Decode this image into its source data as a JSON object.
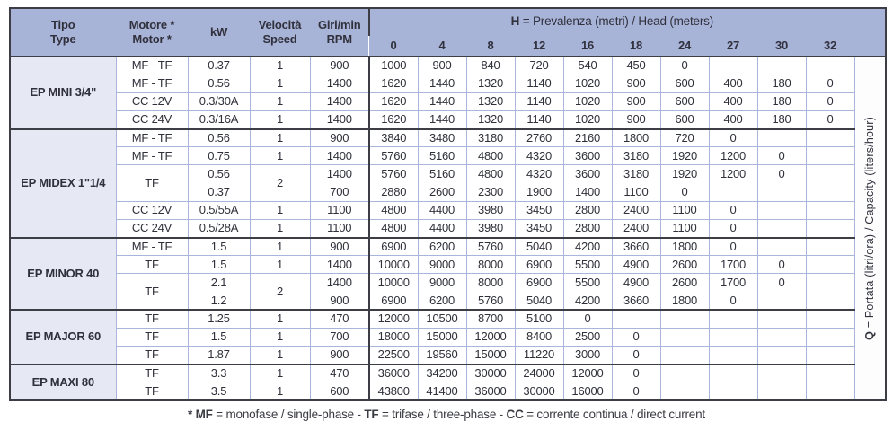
{
  "table": {
    "columns": [
      {
        "id": "tipo",
        "lines": [
          "Tipo",
          "Type"
        ]
      },
      {
        "id": "motore",
        "lines": [
          "Motore *",
          "Motor *"
        ]
      },
      {
        "id": "kw",
        "lines": [
          "kW"
        ]
      },
      {
        "id": "velocita",
        "lines": [
          "Velocità",
          "Speed"
        ]
      },
      {
        "id": "rpm",
        "lines": [
          "Giri/min",
          "RPM"
        ]
      }
    ],
    "head_group": {
      "prefix": "H",
      "rest": " = Prevalenza (metri) / Head (meters)"
    },
    "head_values": [
      "0",
      "4",
      "8",
      "12",
      "16",
      "18",
      "24",
      "27",
      "30",
      "32"
    ],
    "q_axis": {
      "prefix": "Q",
      "rest": " = Portata (litri/ora) / Capacity (liters/hour)"
    },
    "sections": [
      {
        "name": "EP MINI 3/4\"",
        "rows": [
          {
            "motor": "MF - TF",
            "kw": "0.37",
            "speed": "1",
            "rpm": "900",
            "flow": [
              "1000",
              "900",
              "840",
              "720",
              "540",
              "450",
              "0",
              "",
              "",
              ""
            ]
          },
          {
            "motor": "MF - TF",
            "kw": "0.56",
            "speed": "1",
            "rpm": "1400",
            "flow": [
              "1620",
              "1440",
              "1320",
              "1140",
              "1020",
              "900",
              "600",
              "400",
              "180",
              "0"
            ]
          },
          {
            "motor": "CC 12V",
            "kw": "0.3/30A",
            "speed": "1",
            "rpm": "1400",
            "flow": [
              "1620",
              "1440",
              "1320",
              "1140",
              "1020",
              "900",
              "600",
              "400",
              "180",
              "0"
            ]
          },
          {
            "motor": "CC 24V",
            "kw": "0.3/16A",
            "speed": "1",
            "rpm": "1400",
            "flow": [
              "1620",
              "1440",
              "1320",
              "1140",
              "1020",
              "900",
              "600",
              "400",
              "180",
              "0"
            ]
          }
        ]
      },
      {
        "name": "EP MIDEX 1\"1/4",
        "rows": [
          {
            "motor": "MF - TF",
            "kw": "0.56",
            "speed": "1",
            "rpm": "900",
            "flow": [
              "3840",
              "3480",
              "3180",
              "2760",
              "2160",
              "1800",
              "720",
              "0",
              "",
              ""
            ]
          },
          {
            "motor": "MF - TF",
            "kw": "0.75",
            "speed": "1",
            "rpm": "1400",
            "flow": [
              "5760",
              "5160",
              "4800",
              "4320",
              "3600",
              "3180",
              "1920",
              "1200",
              "0",
              ""
            ]
          },
          {
            "motor": "TF",
            "group": 2,
            "kw": "0.56",
            "speed": "2",
            "rpm": "1400",
            "flow": [
              "5760",
              "5160",
              "4800",
              "4320",
              "3600",
              "3180",
              "1920",
              "1200",
              "0",
              ""
            ]
          },
          {
            "cont": true,
            "kw": "0.37",
            "rpm": "700",
            "flow": [
              "2880",
              "2600",
              "2300",
              "1900",
              "1400",
              "1100",
              "0",
              "",
              "",
              ""
            ]
          },
          {
            "motor": "CC 12V",
            "kw": "0.5/55A",
            "speed": "1",
            "rpm": "1100",
            "flow": [
              "4800",
              "4400",
              "3980",
              "3450",
              "2800",
              "2400",
              "1100",
              "0",
              "",
              ""
            ]
          },
          {
            "motor": "CC 24V",
            "kw": "0.5/28A",
            "speed": "1",
            "rpm": "1100",
            "flow": [
              "4800",
              "4400",
              "3980",
              "3450",
              "2800",
              "2400",
              "1100",
              "0",
              "",
              ""
            ]
          }
        ]
      },
      {
        "name": "EP MINOR 40",
        "rows": [
          {
            "motor": "MF - TF",
            "kw": "1.5",
            "speed": "1",
            "rpm": "900",
            "flow": [
              "6900",
              "6200",
              "5760",
              "5040",
              "4200",
              "3660",
              "1800",
              "0",
              "",
              ""
            ]
          },
          {
            "motor": "TF",
            "kw": "1.5",
            "speed": "1",
            "rpm": "1400",
            "flow": [
              "10000",
              "9000",
              "8000",
              "6900",
              "5500",
              "4900",
              "2600",
              "1700",
              "0",
              ""
            ]
          },
          {
            "motor": "TF",
            "group": 2,
            "kw": "2.1",
            "speed": "2",
            "rpm": "1400",
            "flow": [
              "10000",
              "9000",
              "8000",
              "6900",
              "5500",
              "4900",
              "2600",
              "1700",
              "0",
              ""
            ]
          },
          {
            "cont": true,
            "kw": "1.2",
            "rpm": "900",
            "flow": [
              "6900",
              "6200",
              "5760",
              "5040",
              "4200",
              "3660",
              "1800",
              "0",
              "",
              ""
            ]
          }
        ]
      },
      {
        "name": "EP MAJOR 60",
        "rows": [
          {
            "motor": "TF",
            "kw": "1.25",
            "speed": "1",
            "rpm": "470",
            "flow": [
              "12000",
              "10500",
              "8700",
              "5100",
              "0",
              "",
              "",
              "",
              "",
              ""
            ]
          },
          {
            "motor": "TF",
            "kw": "1.5",
            "speed": "1",
            "rpm": "700",
            "flow": [
              "18000",
              "15000",
              "12000",
              "8400",
              "2500",
              "0",
              "",
              "",
              "",
              ""
            ]
          },
          {
            "motor": "TF",
            "kw": "1.87",
            "speed": "1",
            "rpm": "900",
            "flow": [
              "22500",
              "19560",
              "15000",
              "11220",
              "3000",
              "0",
              "",
              "",
              "",
              ""
            ]
          }
        ]
      },
      {
        "name": "EP MAXI 80",
        "rows": [
          {
            "motor": "TF",
            "kw": "3.3",
            "speed": "1",
            "rpm": "470",
            "flow": [
              "36000",
              "34200",
              "30000",
              "24000",
              "12000",
              "0",
              "",
              "",
              "",
              ""
            ]
          },
          {
            "motor": "TF",
            "kw": "3.5",
            "speed": "1",
            "rpm": "600",
            "flow": [
              "43800",
              "41400",
              "36000",
              "30000",
              "16000",
              "0",
              "",
              "",
              "",
              ""
            ]
          }
        ]
      }
    ]
  },
  "footnote": {
    "parts": [
      {
        "t": "* MF",
        "b": true
      },
      {
        "t": " = monofase / single-phase - ",
        "b": false
      },
      {
        "t": "TF",
        "b": true
      },
      {
        "t": " = trifase / three-phase - ",
        "b": false
      },
      {
        "t": "CC",
        "b": true
      },
      {
        "t": " = corrente continua / direct current",
        "b": false
      }
    ]
  },
  "colors": {
    "header_bg": "#a8b3d8",
    "section_bg": "#e6e8f3",
    "grid_line": "#a9b5da",
    "dark_line": "#3c3d45",
    "text": "#2f303a",
    "page_bg": "#ffffff"
  }
}
